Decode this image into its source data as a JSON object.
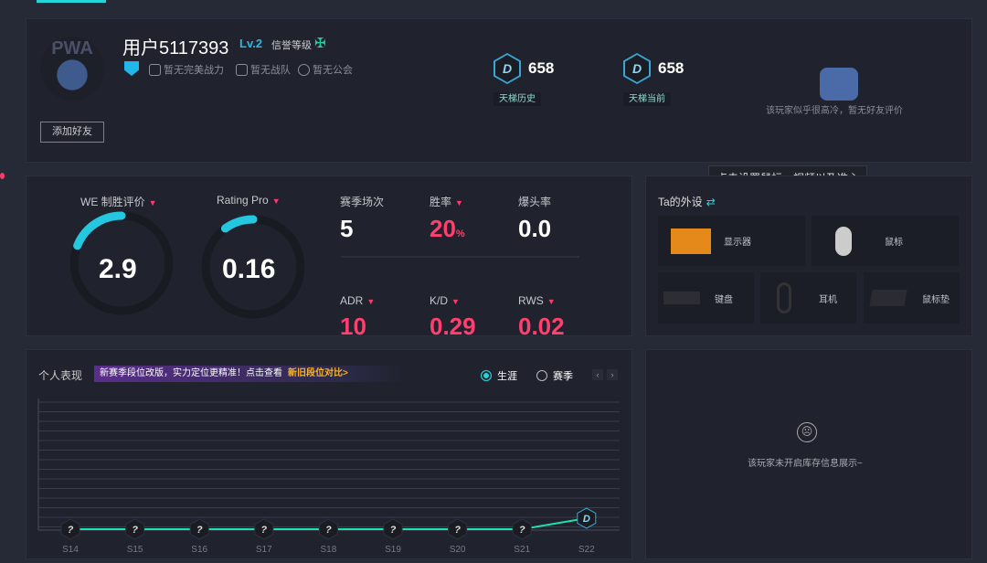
{
  "profile": {
    "username": "用户5117393",
    "level": "Lv.2",
    "credit_label": "信誉等级",
    "power": "暂无完美战力",
    "team": "暂无战队",
    "guild": "暂无公会",
    "add_friend": "添加好友"
  },
  "ladder": [
    {
      "rank": "D",
      "score": "658",
      "label": "天梯历史"
    },
    {
      "rank": "D",
      "score": "658",
      "label": "天梯当前"
    }
  ],
  "friend_review": "该玩家似乎很高冷，暂无好友评价",
  "tooltip": "点击设置鼠标、视频以及准心",
  "gauges": [
    {
      "label": "WE 制胜评价",
      "value": "2.9",
      "fill": 0.19
    },
    {
      "label": "Rating Pro",
      "value": "0.16",
      "fill": 0.1
    }
  ],
  "stats": [
    {
      "label": "赛季场次",
      "value": "5",
      "unit": "",
      "dropdown": false,
      "color": "#ffffff"
    },
    {
      "label": "胜率",
      "value": "20",
      "unit": "%",
      "dropdown": true,
      "color": "#ff3f6e"
    },
    {
      "label": "爆头率",
      "value": "0.0",
      "unit": "",
      "dropdown": false,
      "color": "#ffffff"
    },
    {
      "label": "ADR",
      "value": "10",
      "unit": "",
      "dropdown": true,
      "color": "#ff3f6e"
    },
    {
      "label": "K/D",
      "value": "0.29",
      "unit": "",
      "dropdown": true,
      "color": "#ff3f6e"
    },
    {
      "label": "RWS",
      "value": "0.02",
      "unit": "",
      "dropdown": true,
      "color": "#ff3f6e"
    }
  ],
  "peripherals": {
    "title": "Ta的外设",
    "items": [
      "显示器",
      "鼠标",
      "键盘",
      "耳机",
      "鼠标垫"
    ]
  },
  "performance": {
    "title": "个人表现",
    "banner": "新赛季段位改版，实力定位更精准！点击查看",
    "banner_link": "新旧段位对比>",
    "options": [
      "生涯",
      "赛季"
    ],
    "selected": "生涯"
  },
  "inventory": {
    "message": "该玩家未开启库存信息展示~"
  },
  "chart_data": {
    "type": "line",
    "categories": [
      "S14",
      "S15",
      "S16",
      "S17",
      "S18",
      "S19",
      "S20",
      "S21",
      "S22"
    ],
    "ranks": [
      "?",
      "?",
      "?",
      "?",
      "?",
      "?",
      "?",
      "?",
      "D"
    ],
    "line_color": "#1de0b0"
  }
}
